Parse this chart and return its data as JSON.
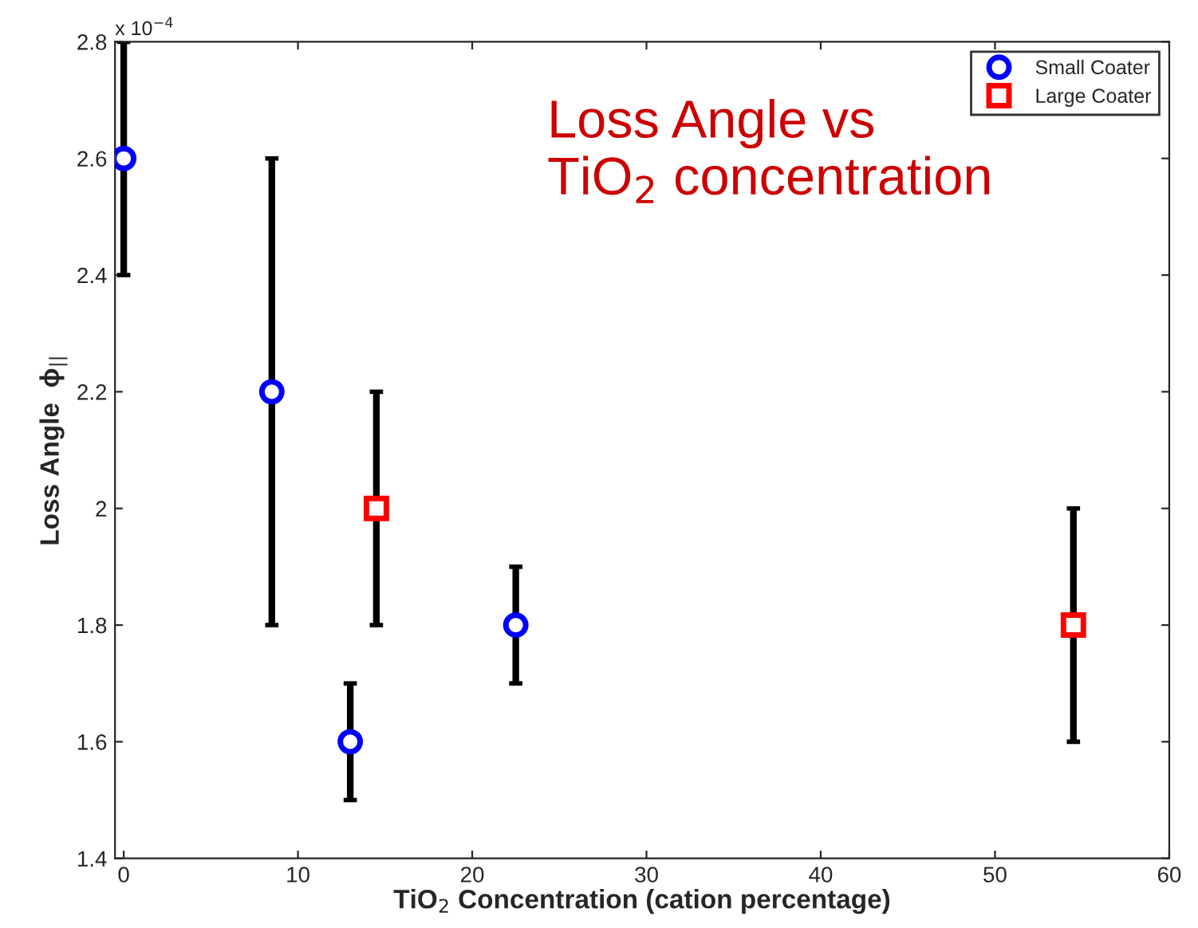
{
  "chart_data": {
    "type": "scatter",
    "title": "Loss Angle vs\nTiO$_{2}$ concentration",
    "xlabel": "TiO$_{2}$ Concentration (cation percentage)",
    "ylabel": "Loss Angle  ϕ$_{||}$",
    "annotations": [
      "x 10$^{−4}$"
    ],
    "series": [
      {
        "name": "Small Coater",
        "color": "#0000ff",
        "marker": "circle",
        "x": [
          0,
          8.5,
          13,
          22.5
        ],
        "values": [
          2.6,
          2.2,
          1.6,
          1.8
        ],
        "errors": [
          [
            2.4,
            2.8
          ],
          [
            1.8,
            2.6
          ],
          [
            1.5,
            1.7
          ],
          [
            1.7,
            1.9
          ]
        ]
      },
      {
        "name": "Large Coater",
        "color": "#ff0000",
        "marker": "square",
        "x": [
          14.5,
          54.5
        ],
        "values": [
          2.0,
          1.8
        ],
        "errors": [
          [
            1.8,
            2.2
          ],
          [
            1.6,
            2.0
          ]
        ]
      }
    ],
    "xlim": [
      -0.5,
      60
    ],
    "xticks": [
      0,
      10,
      20,
      30,
      40,
      50,
      60
    ],
    "ylim": [
      1.4,
      2.8
    ],
    "yticks": [
      1.4,
      1.6,
      1.8,
      2,
      2.2,
      2.4,
      2.6,
      2.8
    ],
    "grid": false,
    "legend": "top right"
  }
}
